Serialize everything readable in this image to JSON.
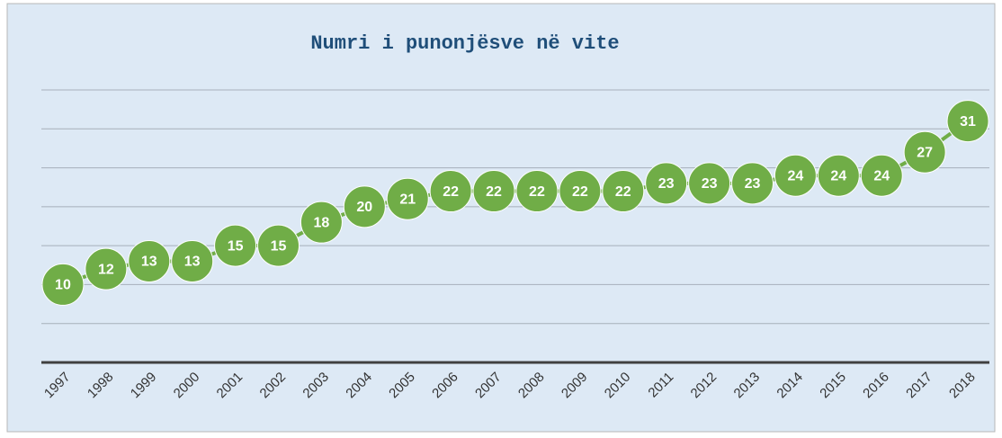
{
  "chart_data": {
    "type": "line",
    "title": "Numri i punonjësve në vite",
    "categories": [
      "1997",
      "1998",
      "1999",
      "2000",
      "2001",
      "2002",
      "2003",
      "2004",
      "2005",
      "2006",
      "2007",
      "2008",
      "2009",
      "2010",
      "2011",
      "2012",
      "2013",
      "2014",
      "2015",
      "2016",
      "2017",
      "2018"
    ],
    "values": [
      10,
      12,
      13,
      13,
      15,
      15,
      18,
      20,
      21,
      22,
      22,
      22,
      22,
      22,
      23,
      23,
      23,
      24,
      24,
      24,
      27,
      31
    ],
    "color": "#70ad47",
    "ylim": [
      0,
      35
    ],
    "yticks": [
      0,
      5,
      10,
      15,
      20,
      25,
      30,
      35
    ],
    "grid": true
  }
}
